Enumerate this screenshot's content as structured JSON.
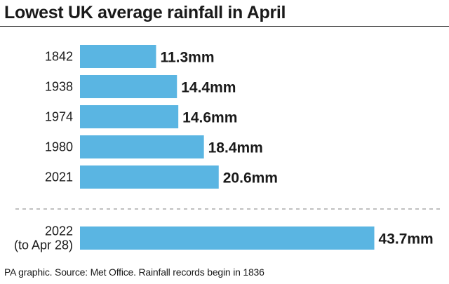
{
  "chart_data": {
    "type": "bar",
    "orientation": "horizontal",
    "title": "Lowest UK average rainfall in April",
    "unit": "mm",
    "categories": [
      "1842",
      "1938",
      "1974",
      "1980",
      "2021",
      "2022 (to Apr 28)"
    ],
    "category_lines": [
      [
        "1842"
      ],
      [
        "1938"
      ],
      [
        "1974"
      ],
      [
        "1980"
      ],
      [
        "2021"
      ],
      [
        "2022",
        "(to Apr 28)"
      ]
    ],
    "values": [
      11.3,
      14.4,
      14.6,
      18.4,
      20.6,
      43.7
    ],
    "data_labels": [
      "11.3mm",
      "14.4mm",
      "14.6mm",
      "18.4mm",
      "20.6mm",
      "43.7mm"
    ],
    "bar_color": "#5ab5e2",
    "separator_before_last": true,
    "grid": false,
    "legend": "none"
  },
  "footer": {
    "source": "PA graphic. Source: Met Office. Rainfall records begin in 1836"
  },
  "colors": {
    "bar": "#5ab5e2",
    "text": "#1a1a1a",
    "separator": "#9a9a9a"
  }
}
